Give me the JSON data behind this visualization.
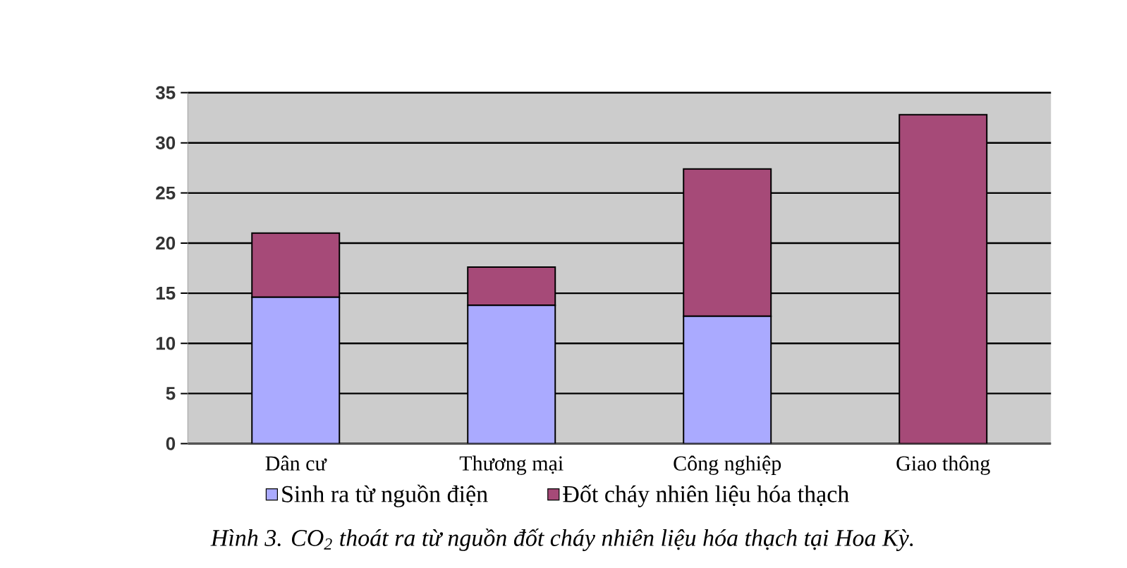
{
  "chart_data": {
    "type": "bar",
    "stacked": true,
    "categories": [
      "Dân cư",
      "Thương mại",
      "Công nghiệp",
      "Giao thông"
    ],
    "series": [
      {
        "name": "Sinh ra từ nguồn điện",
        "color": "#aaaaff",
        "values": [
          14.6,
          13.8,
          12.7,
          0
        ]
      },
      {
        "name": "Đốt cháy nhiên liệu hóa thạch",
        "color": "#a64a78",
        "values": [
          6.4,
          3.8,
          14.7,
          32.8
        ]
      }
    ],
    "ylim": [
      0,
      35
    ],
    "yticks": [
      0,
      5,
      10,
      15,
      20,
      25,
      30,
      35
    ],
    "grid": "y",
    "legend": "bottom",
    "annotations": [
      "*Hình 3. CO$_{2}$ thoát ra từ nguồn đốt cháy nhiên liệu hóa thạch tại Hoa Kỳ.*"
    ]
  }
}
